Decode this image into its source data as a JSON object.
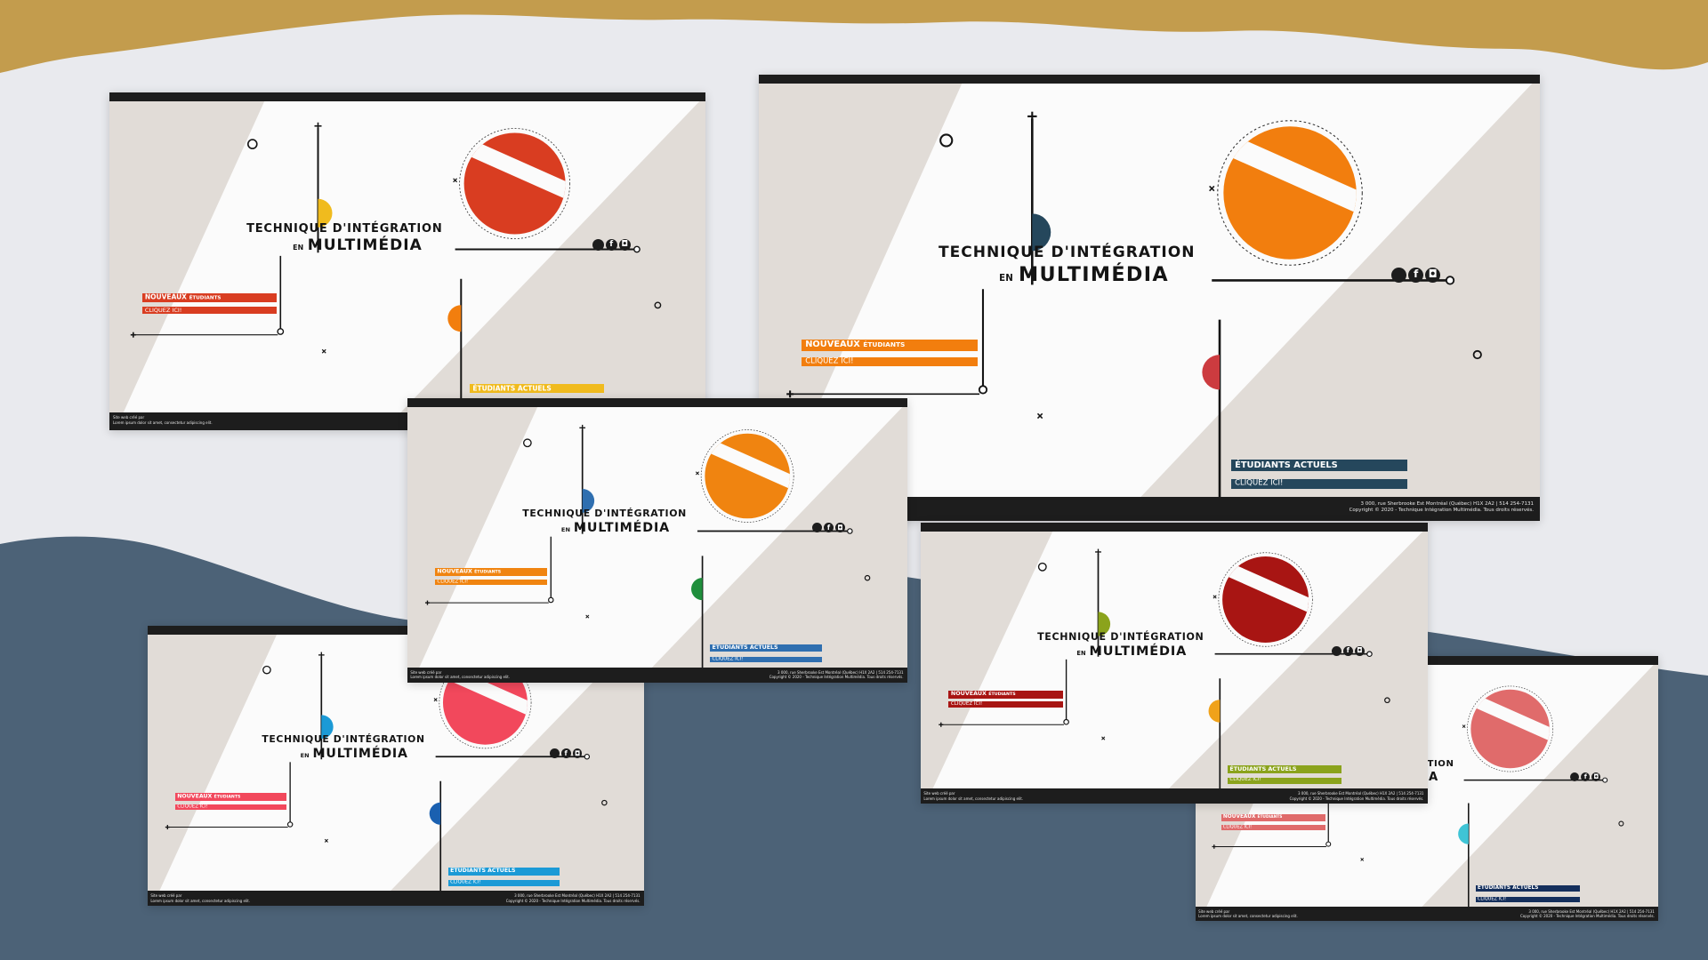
{
  "background": {
    "top_wave_color": "#c39c4d",
    "base_color": "#e9eaee",
    "bottom_wave_color": "#4c6277"
  },
  "mockups": [
    {
      "id": "orange-large",
      "accent": "#f27e0e",
      "semi_top": "#25475c",
      "semi_bottom": "#cc3b3f",
      "students_bar": "#25475c",
      "title_top": "TECHNIQUE D'INTÉGRATION",
      "title_bottom": "MULTIMÉDIA",
      "title_en": "EN",
      "new_label": "NOUVEAUX",
      "new_sub": "ÉTUDIANTS",
      "click_label": "CLIQUEZ ICI!",
      "current_label": "ÉTUDIANTS ACTUELS",
      "current_click": "CLIQUEZ ICI!",
      "footer_left": [
        "",
        ""
      ],
      "footer_right": [
        "3 000, rue Sherbrooke Est Montréal (Québec) H1X 2A2 | 514 254-7131",
        "Copyright © 2020 - Technique Intégration Multimédia. Tous droits réservés."
      ]
    },
    {
      "id": "red-left",
      "accent": "#d93d21",
      "semi_top": "#f0bb1e",
      "semi_bottom": "#f27e0e",
      "students_bar": "#f0bb1e",
      "title_top": "TECHNIQUE D'INTÉGRATION",
      "title_bottom": "MULTIMÉDIA",
      "title_en": "EN",
      "new_label": "NOUVEAUX",
      "new_sub": "ÉTUDIANTS",
      "click_label": "CLIQUEZ ICI!",
      "current_label": "ÉTUDIANTS ACTUELS",
      "current_click": "CLIQUEZ ICI!",
      "footer_left": [
        "Site web créé par",
        "Lorem ipsum dolor sit amet, consectetur adipiscing elit."
      ],
      "footer_right": [
        "",
        ""
      ]
    },
    {
      "id": "orange-middle",
      "accent": "#f08410",
      "semi_top": "#2f6fb0",
      "semi_bottom": "#1f8e3c",
      "students_bar": "#2f6fb0",
      "title_top": "TECHNIQUE D'INTÉGRATION",
      "title_bottom": "MULTIMÉDIA",
      "title_en": "EN",
      "new_label": "NOUVEAUX",
      "new_sub": "ÉTUDIANTS",
      "click_label": "CLIQUEZ ICI!",
      "current_label": "ÉTUDIANTS ACTUELS",
      "current_click": "CLIQUEZ ICI!",
      "footer_left": [
        "Site web créé par",
        "Lorem ipsum dolor sit amet, consectetur adipiscing elit."
      ],
      "footer_right": [
        "3 000, rue Sherbrooke Est Montréal (Québec) H1X 2A2 | 514 254-7131",
        "Copyright © 2020 - Technique Intégration Multimédia. Tous droits réservés."
      ]
    },
    {
      "id": "darkred-right",
      "accent": "#a81513",
      "semi_top": "#8ba31c",
      "semi_bottom": "#f0a21a",
      "students_bar": "#8ba31c",
      "title_top": "TECHNIQUE D'INTÉGRATION",
      "title_bottom": "MULTIMÉDIA",
      "title_en": "EN",
      "new_label": "NOUVEAUX",
      "new_sub": "ÉTUDIANTS",
      "click_label": "CLIQUEZ ICI!",
      "current_label": "ÉTUDIANTS ACTUELS",
      "current_click": "CLIQUEZ ICI!",
      "footer_left": [
        "Site web créé par",
        "Lorem ipsum dolor sit amet, consectetur adipiscing elit."
      ],
      "footer_right": [
        "3 000, rue Sherbrooke Est Montréal (Québec) H1X 2A2 | 514 254-7131",
        "Copyright © 2020 - Technique Intégration Multimédia. Tous droits réservés."
      ]
    },
    {
      "id": "pink-left",
      "accent": "#f2485c",
      "semi_top": "#1b9ad6",
      "semi_bottom": "#1a60b0",
      "students_bar": "#1b9ad6",
      "title_top": "TECHNIQUE D'INTÉGRATION",
      "title_bottom": "MULTIMÉDIA",
      "title_en": "EN",
      "new_label": "NOUVEAUX",
      "new_sub": "ÉTUDIANTS",
      "click_label": "CLIQUEZ ICI!",
      "current_label": "ÉTUDIANTS ACTUELS",
      "current_click": "CLIQUEZ ICI!",
      "footer_left": [
        "Site web créé par",
        "Lorem ipsum dolor sit amet, consectetur adipiscing elit."
      ],
      "footer_right": [
        "3 000, rue Sherbrooke Est Montréal (Québec) H1X 2A2 | 514 254-7131",
        "Copyright © 2020 - Technique Intégration Multimédia. Tous droits réservés."
      ]
    },
    {
      "id": "salmon-right",
      "accent": "#e06b6b",
      "semi_top": "#ffffff",
      "semi_bottom": "#3fc4d6",
      "students_bar": "#142f5c",
      "title_top": "TECHNIQUE D'INTÉGRATION",
      "title_bottom": "MULTIMÉDIA",
      "title_en": "EN",
      "new_label": "NOUVEAUX",
      "new_sub": "ÉTUDIANTS",
      "click_label": "CLIQUEZ ICI!",
      "current_label": "ÉTUDIANTS ACTUELS",
      "current_click": "CLIQUEZ ICI!",
      "footer_left": [
        "Site web créé par",
        "Lorem ipsum dolor sit amet, consectetur adipiscing elit."
      ],
      "footer_right": [
        "3 000, rue Sherbrooke Est Montréal (Québec) H1X 2A2 | 514 254-7131",
        "Copyright © 2020 - Technique Intégration Multimédia. Tous droits réservés."
      ]
    }
  ],
  "social": {
    "icons": [
      "circle-icon",
      "facebook-icon",
      "instagram-icon"
    ],
    "facebook_glyph": "f",
    "instagram_glyph": "◘"
  }
}
